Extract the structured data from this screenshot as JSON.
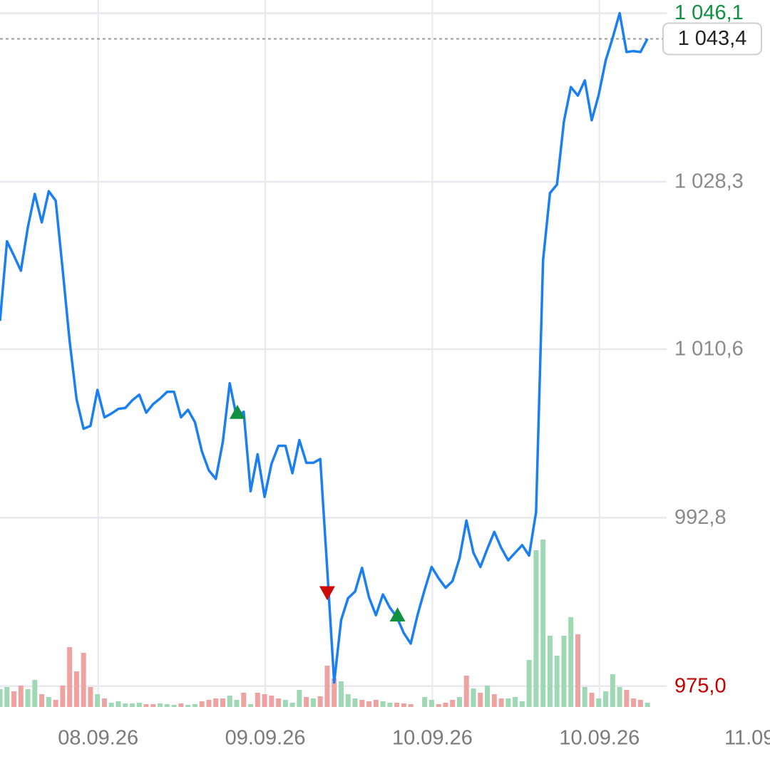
{
  "chart_data": {
    "type": "line",
    "series": [
      {
        "color": "#1a7ff0",
        "values": [
          1013.6,
          1022.0,
          1020.5,
          1018.9,
          1023.5,
          1027.0,
          1024.0,
          1027.3,
          1026.3,
          1019.0,
          1011.5,
          1005.3,
          1002.2,
          1002.5,
          1006.3,
          1003.4,
          1003.8,
          1004.3,
          1004.4,
          1005.2,
          1005.8,
          1003.9,
          1004.8,
          1005.4,
          1006.1,
          1006.1,
          1003.4,
          1004.2,
          1002.9,
          999.8,
          997.8,
          996.9,
          1000.8,
          1007.0,
          1003.4,
          1004.0,
          995.6,
          999.5,
          995.0,
          998.5,
          1000.4,
          1000.4,
          997.5,
          1001.0,
          998.6,
          998.6,
          999.0,
          987.3,
          975.4,
          982.0,
          984.3,
          985.0,
          987.5,
          984.4,
          982.5,
          984.7,
          983.3,
          982.3,
          980.6,
          979.5,
          982.6,
          985.2,
          987.6,
          986.4,
          985.4,
          986.1,
          988.5,
          992.5,
          989.1,
          987.6,
          989.5,
          991.3,
          989.6,
          988.3,
          989.1,
          989.9,
          988.8,
          993.4,
          1020.0,
          1027.1,
          1028.0,
          1034.7,
          1038.3,
          1037.4,
          1039.0,
          1034.8,
          1037.5,
          1041.1,
          1043.5,
          1046.1,
          1042.0,
          1042.1,
          1042.0,
          1043.4
        ]
      }
    ],
    "volume": {
      "values": [
        25,
        28,
        22,
        30,
        25,
        38,
        18,
        14,
        10,
        30,
        84,
        50,
        76,
        28,
        18,
        12,
        6,
        8,
        5,
        5,
        6,
        4,
        4,
        5,
        4,
        3,
        5,
        3,
        4,
        8,
        10,
        12,
        12,
        16,
        10,
        20,
        4,
        20,
        18,
        16,
        12,
        10,
        6,
        24,
        14,
        12,
        15,
        58,
        40,
        36,
        18,
        12,
        10,
        8,
        10,
        8,
        6,
        6,
        5,
        4,
        0,
        14,
        10,
        4,
        6,
        10,
        14,
        44,
        26,
        20,
        30,
        18,
        12,
        12,
        14,
        8,
        66,
        220,
        235,
        100,
        72,
        100,
        126,
        102,
        28,
        20,
        12,
        22,
        46,
        28,
        24,
        12,
        10,
        6
      ],
      "colors": [
        "#9fd8b4",
        "#9fd8b4",
        "#eea3a3",
        "#eea3a3",
        "#9fd8b4",
        "#9fd8b4",
        "#eea3a3",
        "#9fd8b4",
        "#eea3a3",
        "#eea3a3",
        "#eea3a3",
        "#eea3a3",
        "#eea3a3",
        "#eea3a3",
        "#9fd8b4",
        "#eea3a3",
        "#9fd8b4",
        "#9fd8b4",
        "#9fd8b4",
        "#9fd8b4",
        "#9fd8b4",
        "#eea3a3",
        "#eea3a3",
        "#9fd8b4",
        "#9fd8b4",
        "#9fd8b4",
        "#eea3a3",
        "#9fd8b4",
        "#9fd8b4",
        "#eea3a3",
        "#eea3a3",
        "#eea3a3",
        "#eea3a3",
        "#9fd8b4",
        "#9fd8b4",
        "#eea3a3",
        "#9fd8b4",
        "#eea3a3",
        "#eea3a3",
        "#eea3a3",
        "#eea3a3",
        "#9fd8b4",
        "#9fd8b4",
        "#9fd8b4",
        "#eea3a3",
        "#9fd8b4",
        "#eea3a3",
        "#eea3a3",
        "#eea3a3",
        "#9fd8b4",
        "#9fd8b4",
        "#9fd8b4",
        "#eea3a3",
        "#eea3a3",
        "#eea3a3",
        "#9fd8b4",
        "#9fd8b4",
        "#eea3a3",
        "#eea3a3",
        "#eea3a3",
        "#9fd8b4",
        "#9fd8b4",
        "#9fd8b4",
        "#eea3a3",
        "#eea3a3",
        "#eea3a3",
        "#9fd8b4",
        "#eea3a3",
        "#9fd8b4",
        "#eea3a3",
        "#9fd8b4",
        "#eea3a3",
        "#eea3a3",
        "#9fd8b4",
        "#9fd8b4",
        "#9fd8b4",
        "#9fd8b4",
        "#9fd8b4",
        "#9fd8b4",
        "#9fd8b4",
        "#9fd8b4",
        "#9fd8b4",
        "#9fd8b4",
        "#eea3a3",
        "#9fd8b4",
        "#eea3a3",
        "#9fd8b4",
        "#9fd8b4",
        "#9fd8b4",
        "#9fd8b4",
        "#eea3a3",
        "#eea3a3",
        "#eea3a3",
        "#9fd8b4"
      ],
      "vlim": [
        0,
        240
      ]
    },
    "signals": {
      "x": [
        34.1,
        47.0,
        57.1
      ],
      "values": [
        1003.9,
        984.9,
        982.5
      ],
      "directions": [
        "up",
        "down",
        "up"
      ],
      "colors": [
        "#119140",
        "#cc0a0a",
        "#119140"
      ]
    },
    "current": {
      "value": 1043.4,
      "label": "1 043,4"
    },
    "xlim": [
      0,
      110.6
    ],
    "xticks": [
      {
        "value": 14.1,
        "label": "08.09.26"
      },
      {
        "value": 38.1,
        "label": "09.09.26"
      },
      {
        "value": 62.1,
        "label": "10.09.26"
      },
      {
        "value": 86.1,
        "label": "10.09.26"
      },
      {
        "value": 110.0,
        "label": "11.09"
      }
    ],
    "ylim": [
      972.8,
      1047.5
    ],
    "yticks": [
      {
        "value": 975.0,
        "label": "975,0"
      },
      {
        "value": 992.8,
        "label": "992,8"
      },
      {
        "value": 1010.6,
        "label": "1 010,6"
      },
      {
        "value": 1028.3,
        "label": "1 028,3"
      },
      {
        "value": 1046.1,
        "label": "1 046,1"
      }
    ],
    "ytick_colors": [
      "#c40000",
      "#8a8a8a",
      "#8a8a8a",
      "#8a8a8a",
      "#119140"
    ],
    "grid": true
  }
}
